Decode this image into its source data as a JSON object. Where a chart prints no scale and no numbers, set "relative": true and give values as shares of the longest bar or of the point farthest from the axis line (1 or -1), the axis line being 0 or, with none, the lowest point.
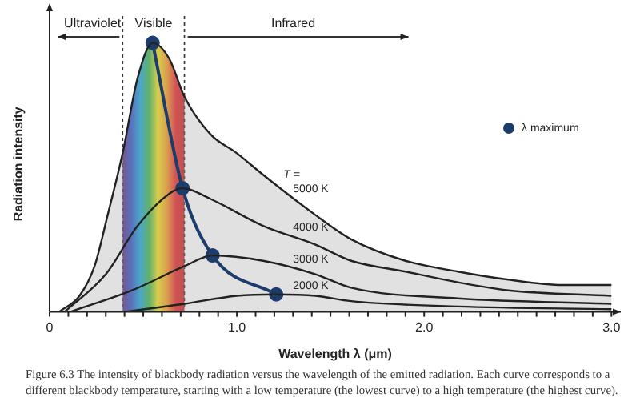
{
  "chart_data": {
    "type": "line",
    "relative": true,
    "xlabel": "Wavelength λ (μm)",
    "ylabel": "Radiation intensity",
    "xlim": [
      0,
      3.05
    ],
    "xticks": [
      {
        "value": 0,
        "label": "0"
      },
      {
        "value": 0.1,
        "label": null
      },
      {
        "value": 0.2,
        "label": null
      },
      {
        "value": 0.3,
        "label": null
      },
      {
        "value": 0.4,
        "label": null
      },
      {
        "value": 0.5,
        "label": null
      },
      {
        "value": 0.6,
        "label": null
      },
      {
        "value": 0.7,
        "label": null
      },
      {
        "value": 0.8,
        "label": null
      },
      {
        "value": 0.9,
        "label": null
      },
      {
        "value": 1,
        "label": "1.0"
      },
      {
        "value": 1.1,
        "label": null
      },
      {
        "value": 1.2,
        "label": null
      },
      {
        "value": 1.3,
        "label": null
      },
      {
        "value": 1.4,
        "label": null
      },
      {
        "value": 1.5,
        "label": null
      },
      {
        "value": 1.6,
        "label": null
      },
      {
        "value": 1.7,
        "label": null
      },
      {
        "value": 1.8,
        "label": null
      },
      {
        "value": 1.9,
        "label": null
      },
      {
        "value": 2,
        "label": "2.0"
      },
      {
        "value": 2.1,
        "label": null
      },
      {
        "value": 2.2,
        "label": null
      },
      {
        "value": 2.3,
        "label": null
      },
      {
        "value": 2.4,
        "label": null
      },
      {
        "value": 2.5,
        "label": null
      },
      {
        "value": 2.6,
        "label": null
      },
      {
        "value": 2.7,
        "label": null
      },
      {
        "value": 2.8,
        "label": null
      },
      {
        "value": 2.9,
        "label": null
      },
      {
        "value": 3,
        "label": "3.0"
      }
    ],
    "legend": "top right",
    "series": [
      {
        "name": "5000 K",
        "type": "area",
        "color": "#222222",
        "marker": "none",
        "x": [
          0.05,
          0.16,
          0.24,
          0.31,
          0.39,
          0.47,
          0.55,
          0.64,
          0.72,
          0.86,
          1.0,
          1.14,
          1.42,
          1.61,
          1.9,
          2.18,
          2.45,
          2.74,
          3.0
        ],
        "values": [
          0,
          0.06,
          0.17,
          0.36,
          0.59,
          0.87,
          1.0,
          0.94,
          0.8,
          0.66,
          0.59,
          0.51,
          0.36,
          0.27,
          0.19,
          0.15,
          0.12,
          0.1,
          0.1
        ]
      },
      {
        "name": "4000 K",
        "color": "#222222",
        "marker": "none",
        "x": [
          0.08,
          0.3,
          0.47,
          0.64,
          0.71,
          0.86,
          1.14,
          1.42,
          1.61,
          1.9,
          2.18,
          2.45,
          3.0
        ],
        "values": [
          0,
          0.14,
          0.32,
          0.44,
          0.46,
          0.42,
          0.32,
          0.25,
          0.19,
          0.15,
          0.11,
          0.08,
          0.06
        ]
      },
      {
        "name": "3000 K",
        "color": "#222222",
        "marker": "none",
        "x": [
          0.11,
          0.44,
          0.72,
          0.87,
          1.14,
          1.42,
          1.61,
          2.18,
          3.0
        ],
        "values": [
          0,
          0.08,
          0.17,
          0.21,
          0.19,
          0.14,
          0.09,
          0.05,
          0.03
        ]
      },
      {
        "name": "2000 K",
        "color": "#222222",
        "marker": "none",
        "x": [
          0.4,
          0.72,
          1.0,
          1.21,
          1.42,
          1.61,
          2.18,
          3.0
        ],
        "values": [
          0,
          0.03,
          0.06,
          0.065,
          0.06,
          0.04,
          0.02,
          0.01
        ]
      },
      {
        "name": "λ maximum",
        "color": "#1c3d6b",
        "marker": "circle",
        "x": [
          0.55,
          0.71,
          0.87,
          1.21
        ],
        "values": [
          1.0,
          0.46,
          0.21,
          0.065
        ]
      }
    ],
    "bands": [
      {
        "axis": "x",
        "from": 0.39,
        "to": 0.72,
        "label": "Visible"
      }
    ],
    "annotations": [
      "Ultraviolet",
      "Infrared",
      "T =",
      "Figure 6.3   The intensity of blackbody radiation versus the wavelength of the emitted radiation. Each curve corresponds to a different blackbody temperature, starting with a low temperature (the lowest curve) to a high temperature (the highest curve)."
    ]
  }
}
